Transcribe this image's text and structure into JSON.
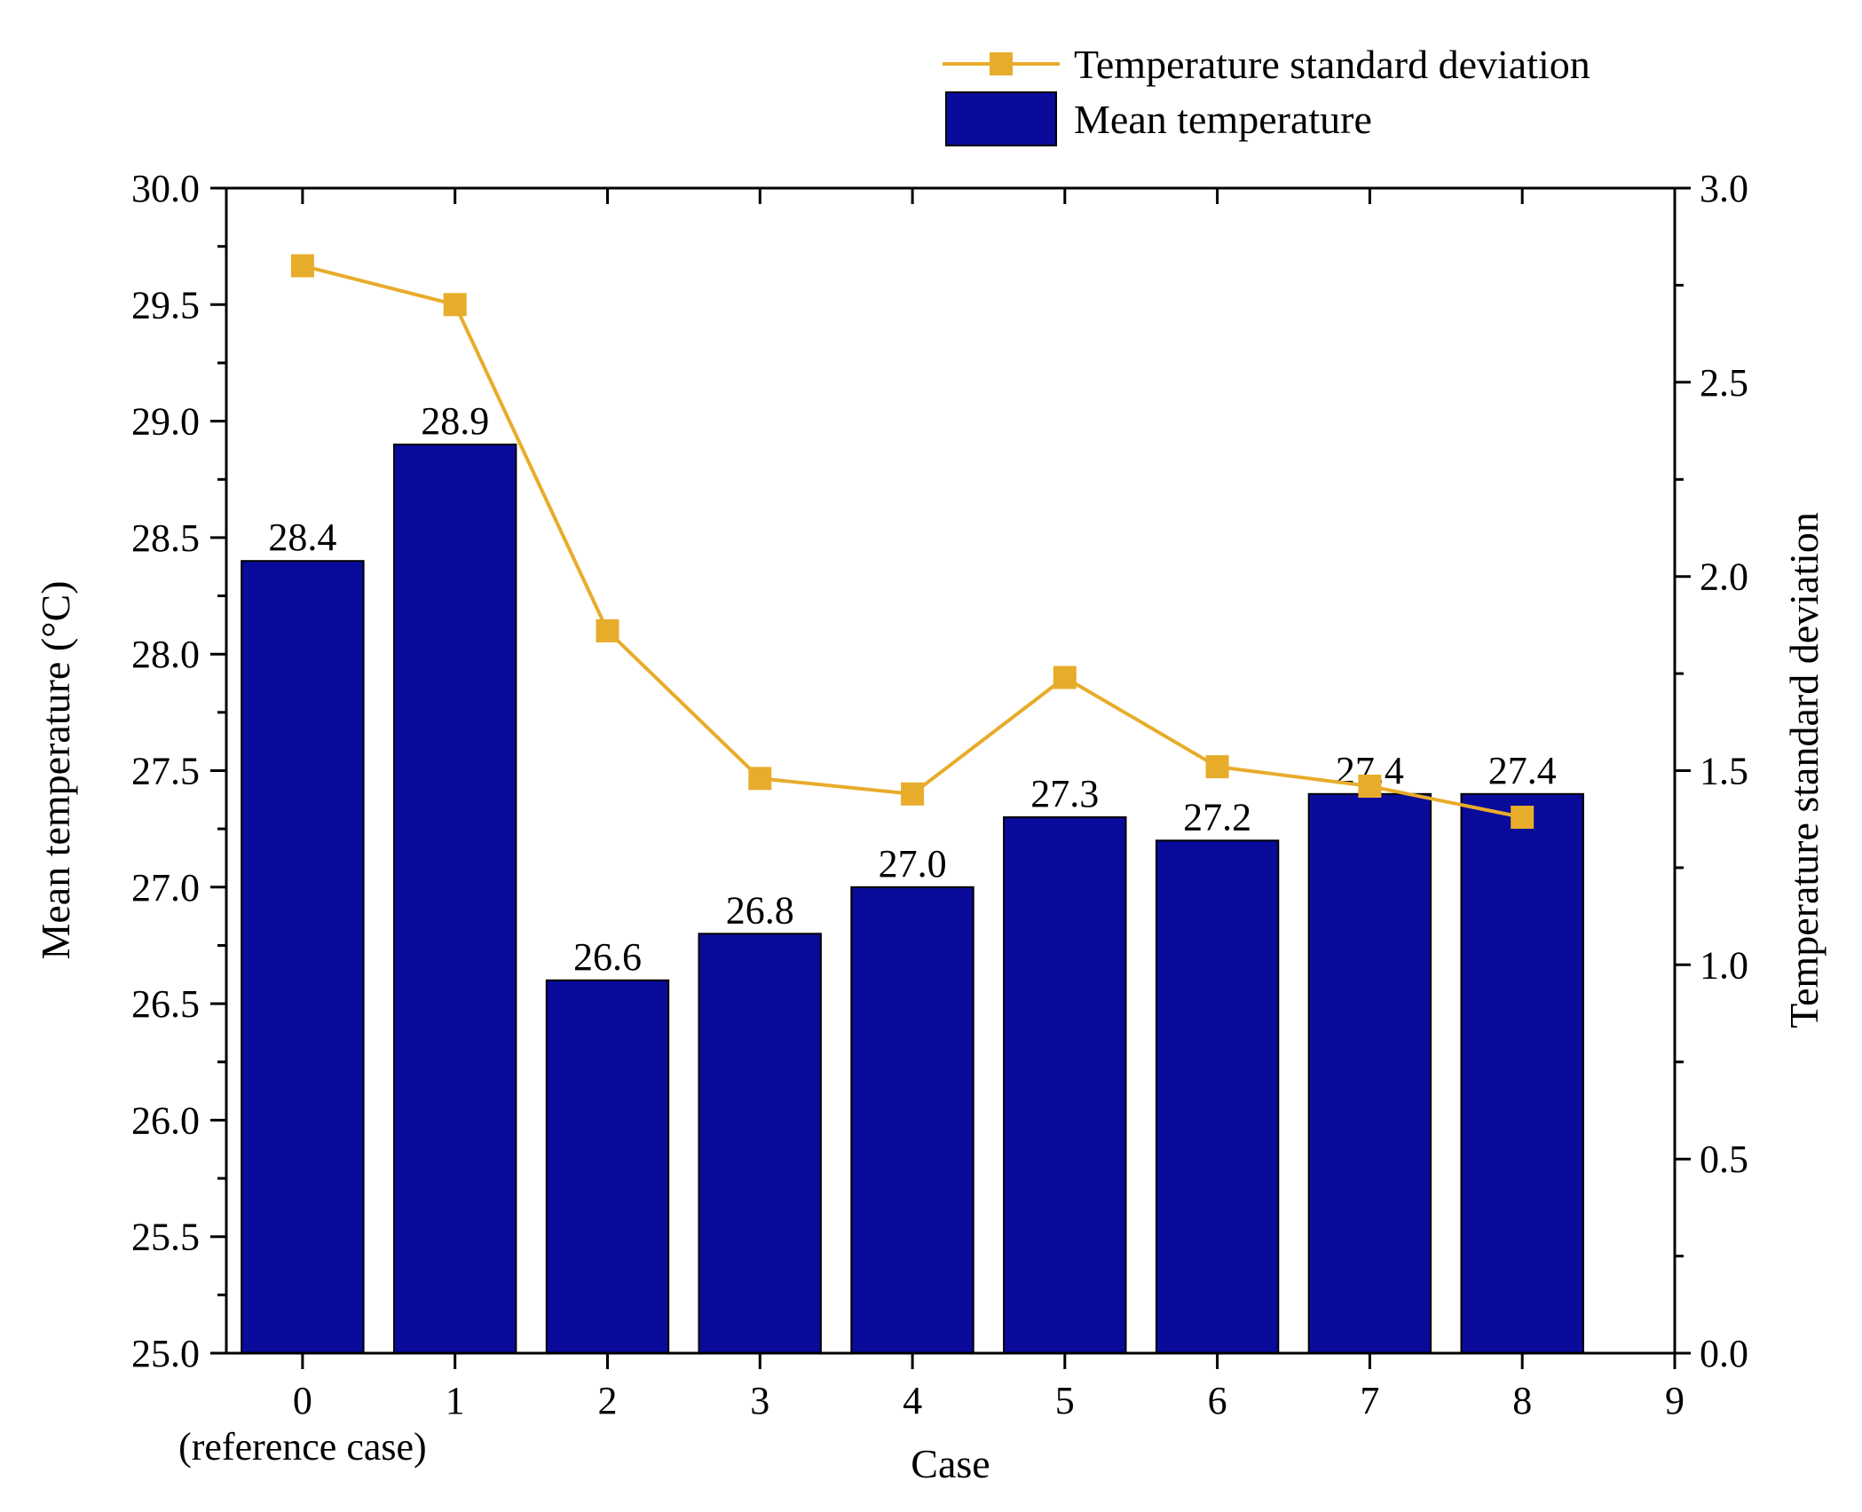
{
  "chart_data": {
    "type": "bar",
    "categories": [
      "0",
      "1",
      "2",
      "3",
      "4",
      "5",
      "6",
      "7",
      "8"
    ],
    "x_ticks": [
      "0",
      "1",
      "2",
      "3",
      "4",
      "5",
      "6",
      "7",
      "8",
      "9"
    ],
    "x_tick_sublabel": {
      "category": "0",
      "text": "(reference case)"
    },
    "xlim": [
      -0.5,
      9
    ],
    "xlabel": "Case",
    "ylabel": "Mean temperature (°C)",
    "ylim": [
      25.0,
      30.0
    ],
    "y_ticks": [
      "25.0",
      "25.5",
      "26.0",
      "26.5",
      "27.0",
      "27.5",
      "28.0",
      "28.5",
      "29.0",
      "29.5",
      "30.0"
    ],
    "y2label": "Temperature standard deviation",
    "y2lim": [
      0.0,
      3.0
    ],
    "y2_ticks": [
      "0.0",
      "0.5",
      "1.0",
      "1.5",
      "2.0",
      "2.5",
      "3.0"
    ],
    "series": [
      {
        "name": "Mean temperature",
        "type": "bar",
        "axis": "left",
        "color": "#0a0a9b",
        "values": [
          28.4,
          28.9,
          26.6,
          26.8,
          27.0,
          27.3,
          27.2,
          27.4,
          27.4
        ],
        "labels": [
          "28.4",
          "28.9",
          "26.6",
          "26.8",
          "27.0",
          "27.3",
          "27.2",
          "27.4",
          "27.4"
        ]
      },
      {
        "name": "Temperature standard deviation",
        "type": "line",
        "marker": "square",
        "axis": "right",
        "color": "#e8ac2b",
        "values": [
          2.8,
          2.7,
          1.86,
          1.48,
          1.44,
          1.74,
          1.51,
          1.46,
          1.38
        ]
      }
    ],
    "legend": {
      "position": "top-right",
      "entries": [
        "Temperature standard deviation",
        "Mean temperature"
      ]
    }
  }
}
